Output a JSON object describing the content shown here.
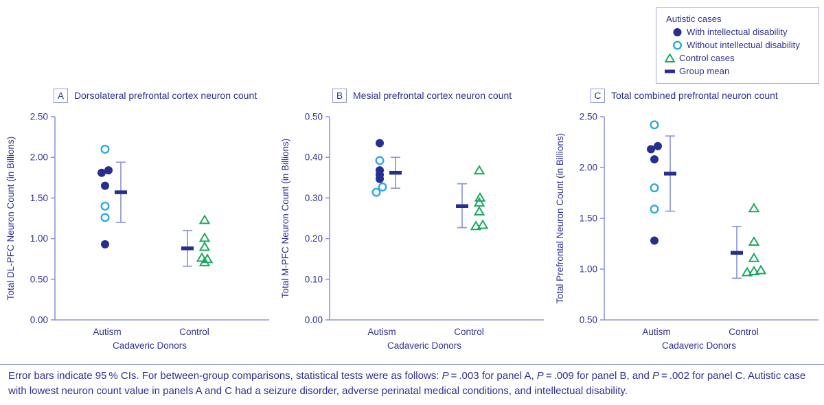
{
  "colors": {
    "text": "#2e3192",
    "filled_marker": "#272f8e",
    "open_marker": "#29aae1",
    "triangle": "#1aa95f",
    "axis": "#8d97d8",
    "error_bar": "#8d97d8",
    "mean_bar": "#272f8e",
    "legend_border": "#a3abe2",
    "rule": "#4a55b0"
  },
  "legend": {
    "title": "Autistic cases",
    "items": [
      {
        "marker": "filled-circle",
        "label": "With intellectual disability",
        "indent": true
      },
      {
        "marker": "open-circle",
        "label": "Without intellectual disability",
        "indent": true
      },
      {
        "marker": "open-triangle",
        "label": "Control cases",
        "indent": false
      },
      {
        "marker": "mean-bar",
        "label": "Group mean",
        "indent": false
      }
    ]
  },
  "chart_data": [
    {
      "type": "scatter",
      "panel_label": "A",
      "title": "Dorsolateral prefrontal cortex neuron count",
      "ylabel": "Total DL-PFC Neuron Count (in Billions)",
      "xlabel": "Cadaveric Donors",
      "categories": [
        "Autism",
        "Control"
      ],
      "ylim": [
        0.0,
        2.5
      ],
      "yticks": [
        "0.00",
        "0.50",
        "1.00",
        "1.50",
        "2.00",
        "2.50"
      ],
      "grid": false,
      "groups": [
        {
          "name": "Autism",
          "points": [
            {
              "marker": "open-circle",
              "y": 2.1,
              "dx": 0
            },
            {
              "marker": "filled-circle",
              "y": 1.81,
              "dx": -5
            },
            {
              "marker": "filled-circle",
              "y": 1.84,
              "dx": 5
            },
            {
              "marker": "filled-circle",
              "y": 1.65,
              "dx": 0
            },
            {
              "marker": "open-circle",
              "y": 1.4,
              "dx": 0
            },
            {
              "marker": "open-circle",
              "y": 1.26,
              "dx": 0
            },
            {
              "marker": "filled-circle",
              "y": 0.93,
              "dx": 0
            }
          ],
          "mean": 1.57,
          "ci": [
            1.2,
            1.94
          ]
        },
        {
          "name": "Control",
          "points": [
            {
              "marker": "open-triangle",
              "y": 1.23,
              "dx": 0
            },
            {
              "marker": "open-triangle",
              "y": 1.01,
              "dx": 0
            },
            {
              "marker": "open-triangle",
              "y": 0.9,
              "dx": 0
            },
            {
              "marker": "open-triangle",
              "y": 0.765,
              "dx": -4
            },
            {
              "marker": "open-triangle",
              "y": 0.75,
              "dx": 4
            },
            {
              "marker": "open-triangle",
              "y": 0.71,
              "dx": 0
            }
          ],
          "mean": 0.88,
          "ci": [
            0.66,
            1.1
          ]
        }
      ]
    },
    {
      "type": "scatter",
      "panel_label": "B",
      "title": "Mesial prefrontal cortex neuron count",
      "ylabel": "Total M-PFC Neuron Count (in Billions)",
      "xlabel": "Cadaveric Donors",
      "categories": [
        "Autism",
        "Control"
      ],
      "ylim": [
        0.0,
        0.5
      ],
      "yticks": [
        "0.00",
        "0.10",
        "0.20",
        "0.30",
        "0.40",
        "0.50"
      ],
      "grid": false,
      "groups": [
        {
          "name": "Autism",
          "points": [
            {
              "marker": "filled-circle",
              "y": 0.435,
              "dx": 0
            },
            {
              "marker": "open-circle",
              "y": 0.392,
              "dx": 0
            },
            {
              "marker": "filled-circle",
              "y": 0.368,
              "dx": 0
            },
            {
              "marker": "filled-circle",
              "y": 0.357,
              "dx": 0
            },
            {
              "marker": "filled-circle",
              "y": 0.347,
              "dx": 0
            },
            {
              "marker": "open-circle",
              "y": 0.314,
              "dx": -5
            },
            {
              "marker": "open-circle",
              "y": 0.327,
              "dx": 4
            }
          ],
          "mean": 0.362,
          "ci": [
            0.324,
            0.4
          ]
        },
        {
          "name": "Control",
          "points": [
            {
              "marker": "open-triangle",
              "y": 0.368,
              "dx": 0
            },
            {
              "marker": "open-triangle",
              "y": 0.301,
              "dx": 1
            },
            {
              "marker": "open-triangle",
              "y": 0.289,
              "dx": 0
            },
            {
              "marker": "open-triangle",
              "y": 0.267,
              "dx": 0
            },
            {
              "marker": "open-triangle",
              "y": 0.231,
              "dx": -5
            },
            {
              "marker": "open-triangle",
              "y": 0.234,
              "dx": 5
            }
          ],
          "mean": 0.28,
          "ci": [
            0.227,
            0.335
          ]
        }
      ]
    },
    {
      "type": "scatter",
      "panel_label": "C",
      "title": "Total combined prefrontal neuron count",
      "ylabel": "Total Prefrontal Neuron Count (in Billions)",
      "xlabel": "Cadaveric Donors",
      "categories": [
        "Autism",
        "Control"
      ],
      "ylim": [
        0.5,
        2.5
      ],
      "yticks": [
        "0.50",
        "1.00",
        "1.50",
        "2.00",
        "2.50"
      ],
      "grid": false,
      "groups": [
        {
          "name": "Autism",
          "points": [
            {
              "marker": "open-circle",
              "y": 2.42,
              "dx": 0
            },
            {
              "marker": "filled-circle",
              "y": 2.18,
              "dx": -5
            },
            {
              "marker": "filled-circle",
              "y": 2.21,
              "dx": 5
            },
            {
              "marker": "filled-circle",
              "y": 2.08,
              "dx": 0
            },
            {
              "marker": "open-circle",
              "y": 1.8,
              "dx": 0
            },
            {
              "marker": "open-circle",
              "y": 1.59,
              "dx": 0
            },
            {
              "marker": "filled-circle",
              "y": 1.28,
              "dx": 0
            }
          ],
          "mean": 1.94,
          "ci": [
            1.57,
            2.31
          ]
        },
        {
          "name": "Control",
          "points": [
            {
              "marker": "open-triangle",
              "y": 1.6,
              "dx": 0
            },
            {
              "marker": "open-triangle",
              "y": 1.27,
              "dx": 0
            },
            {
              "marker": "open-triangle",
              "y": 1.11,
              "dx": 0
            },
            {
              "marker": "open-triangle",
              "y": 0.97,
              "dx": -10
            },
            {
              "marker": "open-triangle",
              "y": 0.98,
              "dx": 0
            },
            {
              "marker": "open-triangle",
              "y": 0.99,
              "dx": 10
            }
          ],
          "mean": 1.16,
          "ci": [
            0.91,
            1.42
          ]
        }
      ]
    }
  ],
  "footnote": {
    "segments": [
      {
        "text": "Error bars indicate 95 % CIs. For between-group comparisons, statistical tests were as follows: ",
        "italic": false
      },
      {
        "text": "P",
        "italic": true
      },
      {
        "text": " = .003 for panel A, ",
        "italic": false
      },
      {
        "text": "P",
        "italic": true
      },
      {
        "text": " = .009 for panel B, and ",
        "italic": false
      },
      {
        "text": "P",
        "italic": true
      },
      {
        "text": " = .002 for panel C. Autistic case with lowest neuron count value in panels A and C had a seizure disorder, adverse perinatal medical conditions, and intellectual disability.",
        "italic": false
      }
    ]
  }
}
